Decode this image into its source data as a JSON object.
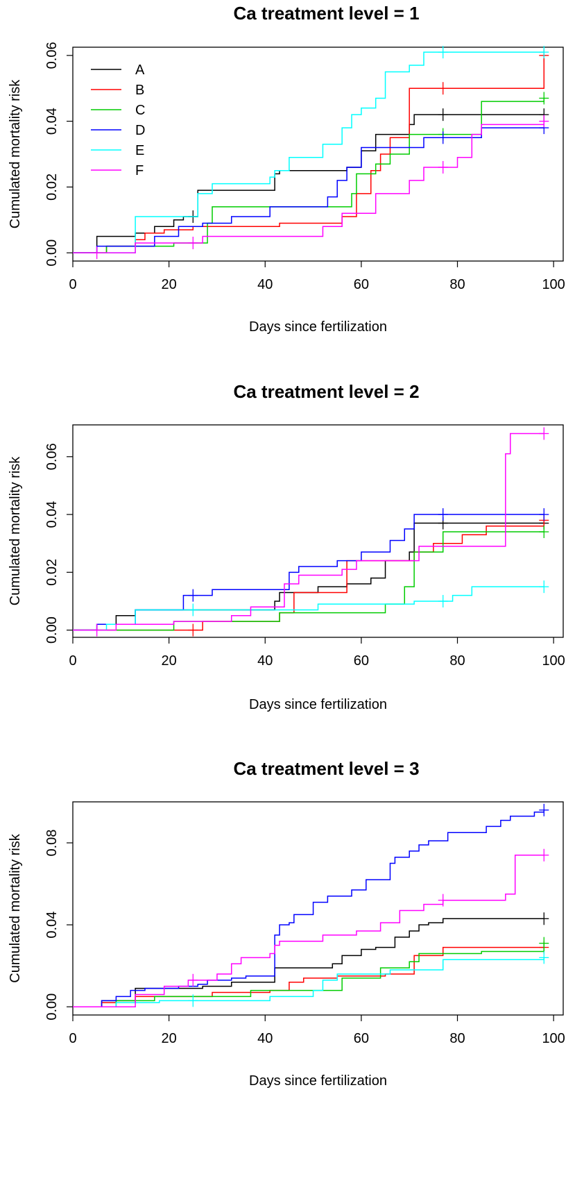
{
  "colors": {
    "A": "#000000",
    "B": "#ff0000",
    "C": "#00cc00",
    "D": "#0000ff",
    "E": "#00ffff",
    "F": "#ff00ff"
  },
  "chart_data": [
    {
      "type": "line",
      "title": "Ca treatment level = 1",
      "xlabel": "Days since fertilization",
      "ylabel": "Cumulated mortality risk",
      "xlim": [
        0,
        102
      ],
      "ylim": [
        -0.0025,
        0.0625
      ],
      "xticks": [
        "0",
        "20",
        "40",
        "60",
        "80",
        "100"
      ],
      "xtick_values": [
        0,
        20,
        40,
        60,
        80,
        100
      ],
      "yticks": [
        "0.00",
        "0.02",
        "0.04",
        "0.06"
      ],
      "ytick_values": [
        0,
        0.02,
        0.04,
        0.06
      ],
      "legend": {
        "position": "top-left",
        "entries": [
          "A",
          "B",
          "C",
          "D",
          "E",
          "F"
        ]
      },
      "series": [
        {
          "name": "A",
          "color": "#000000",
          "x": [
            0,
            5,
            13,
            17,
            21,
            23,
            26,
            42,
            43,
            57,
            60,
            63,
            70,
            71,
            98
          ],
          "y": [
            0,
            0.005,
            0.006,
            0.008,
            0.01,
            0.011,
            0.019,
            0.024,
            0.025,
            0.026,
            0.031,
            0.036,
            0.039,
            0.042,
            0.042
          ],
          "censored_x": [
            25,
            77,
            98
          ]
        },
        {
          "name": "B",
          "color": "#ff0000",
          "x": [
            0,
            7,
            13,
            15,
            19,
            23,
            25,
            30,
            43,
            56,
            59,
            62,
            64,
            66,
            70,
            98
          ],
          "y": [
            0,
            0.002,
            0.004,
            0.006,
            0.007,
            0.007,
            0.008,
            0.008,
            0.009,
            0.011,
            0.018,
            0.025,
            0.03,
            0.035,
            0.05,
            0.06
          ],
          "censored_x": [
            77,
            98
          ]
        },
        {
          "name": "C",
          "color": "#00cc00",
          "x": [
            0,
            7,
            21,
            28,
            29,
            48,
            58,
            59,
            63,
            66,
            70,
            85,
            98
          ],
          "y": [
            0,
            0.002,
            0.003,
            0.009,
            0.014,
            0.014,
            0.018,
            0.024,
            0.027,
            0.03,
            0.036,
            0.046,
            0.047
          ],
          "censored_x": [
            77,
            98
          ]
        },
        {
          "name": "D",
          "color": "#0000ff",
          "x": [
            0,
            5,
            17,
            22,
            27,
            33,
            41,
            45,
            53,
            55,
            57,
            60,
            65,
            73,
            85,
            98
          ],
          "y": [
            0,
            0.002,
            0.005,
            0.008,
            0.009,
            0.011,
            0.014,
            0.014,
            0.017,
            0.022,
            0.026,
            0.032,
            0.032,
            0.035,
            0.038,
            0.038
          ],
          "censored_x": [
            77,
            98
          ]
        },
        {
          "name": "E",
          "color": "#00ffff",
          "x": [
            0,
            13,
            21,
            26,
            29,
            41,
            42,
            45,
            52,
            56,
            58,
            60,
            63,
            65,
            70,
            73,
            98
          ],
          "y": [
            0,
            0.011,
            0.011,
            0.018,
            0.021,
            0.023,
            0.025,
            0.029,
            0.033,
            0.038,
            0.042,
            0.044,
            0.047,
            0.055,
            0.057,
            0.061,
            0.061
          ],
          "censored_x": [
            77,
            98
          ]
        },
        {
          "name": "F",
          "color": "#ff00ff",
          "x": [
            0,
            13,
            27,
            52,
            56,
            63,
            70,
            73,
            80,
            83,
            85,
            98
          ],
          "y": [
            0,
            0.003,
            0.005,
            0.008,
            0.012,
            0.018,
            0.022,
            0.026,
            0.029,
            0.036,
            0.039,
            0.04
          ],
          "censored_x": [
            5,
            25,
            77,
            98
          ]
        }
      ]
    },
    {
      "type": "line",
      "title": "Ca treatment level = 2",
      "xlabel": "Days since fertilization",
      "ylabel": "Cumulated mortality risk",
      "xlim": [
        0,
        102
      ],
      "ylim": [
        -0.0025,
        0.071
      ],
      "xticks": [
        "0",
        "20",
        "40",
        "60",
        "80",
        "100"
      ],
      "xtick_values": [
        0,
        20,
        40,
        60,
        80,
        100
      ],
      "yticks": [
        "0.00",
        "0.02",
        "0.04",
        "0.06"
      ],
      "ytick_values": [
        0,
        0.02,
        0.04,
        0.06
      ],
      "series": [
        {
          "name": "A",
          "color": "#000000",
          "x": [
            0,
            5,
            9,
            13,
            42,
            43,
            51,
            57,
            62,
            65,
            70,
            71,
            98
          ],
          "y": [
            0,
            0.002,
            0.005,
            0.007,
            0.01,
            0.013,
            0.015,
            0.016,
            0.018,
            0.024,
            0.027,
            0.037,
            0.037
          ],
          "censored_x": [
            77,
            98
          ]
        },
        {
          "name": "B",
          "color": "#ff0000",
          "x": [
            0,
            27,
            43,
            46,
            57,
            71,
            75,
            81,
            86,
            98
          ],
          "y": [
            0,
            0.003,
            0.006,
            0.013,
            0.024,
            0.027,
            0.03,
            0.033,
            0.036,
            0.038
          ],
          "censored_x": [
            25,
            98
          ]
        },
        {
          "name": "C",
          "color": "#00cc00",
          "x": [
            0,
            21,
            43,
            65,
            69,
            71,
            77,
            98
          ],
          "y": [
            0,
            0.003,
            0.006,
            0.009,
            0.015,
            0.027,
            0.034,
            0.034
          ],
          "censored_x": [
            98
          ]
        },
        {
          "name": "D",
          "color": "#0000ff",
          "x": [
            0,
            5,
            13,
            23,
            29,
            45,
            47,
            55,
            60,
            66,
            69,
            70,
            71,
            98
          ],
          "y": [
            0,
            0.002,
            0.007,
            0.012,
            0.014,
            0.02,
            0.022,
            0.024,
            0.027,
            0.031,
            0.035,
            0.035,
            0.04,
            0.04
          ],
          "censored_x": [
            25,
            77,
            98
          ]
        },
        {
          "name": "E",
          "color": "#00ffff",
          "x": [
            0,
            7,
            13,
            51,
            71,
            79,
            83,
            98
          ],
          "y": [
            0,
            0.002,
            0.007,
            0.009,
            0.01,
            0.012,
            0.015,
            0.015
          ],
          "censored_x": [
            25,
            77,
            98
          ]
        },
        {
          "name": "F",
          "color": "#ff00ff",
          "x": [
            0,
            9,
            21,
            33,
            37,
            44,
            47,
            52,
            56,
            59,
            65,
            72,
            90,
            91,
            98
          ],
          "y": [
            0,
            0.002,
            0.003,
            0.005,
            0.008,
            0.016,
            0.019,
            0.019,
            0.021,
            0.024,
            0.024,
            0.029,
            0.061,
            0.068,
            0.068
          ],
          "censored_x": [
            5,
            98
          ]
        }
      ]
    },
    {
      "type": "line",
      "title": "Ca treatment level = 3",
      "xlabel": "Days since fertilization",
      "ylabel": "Cumulated mortality risk",
      "xlim": [
        0,
        102
      ],
      "ylim": [
        -0.004,
        0.1
      ],
      "xticks": [
        "0",
        "20",
        "40",
        "60",
        "80",
        "100"
      ],
      "xtick_values": [
        0,
        20,
        40,
        60,
        80,
        100
      ],
      "yticks": [
        "0.00",
        "0.04",
        "0.08"
      ],
      "ytick_values": [
        0,
        0.04,
        0.08
      ],
      "series": [
        {
          "name": "A",
          "color": "#000000",
          "x": [
            0,
            6,
            13,
            27,
            33,
            42,
            54,
            56,
            60,
            63,
            67,
            70,
            72,
            74,
            77,
            98
          ],
          "y": [
            0,
            0.003,
            0.009,
            0.01,
            0.012,
            0.019,
            0.021,
            0.025,
            0.028,
            0.029,
            0.034,
            0.037,
            0.04,
            0.041,
            0.043,
            0.043
          ],
          "censored_x": [
            98
          ]
        },
        {
          "name": "B",
          "color": "#ff0000",
          "x": [
            0,
            6,
            13,
            29,
            41,
            45,
            48,
            55,
            65,
            71,
            77,
            98
          ],
          "y": [
            0,
            0.002,
            0.005,
            0.007,
            0.008,
            0.012,
            0.014,
            0.015,
            0.016,
            0.025,
            0.029,
            0.029
          ],
          "censored_x": [
            98
          ]
        },
        {
          "name": "C",
          "color": "#00cc00",
          "x": [
            0,
            9,
            17,
            37,
            56,
            64,
            70,
            72,
            85,
            98
          ],
          "y": [
            0,
            0.003,
            0.005,
            0.008,
            0.014,
            0.019,
            0.022,
            0.026,
            0.027,
            0.031
          ],
          "censored_x": [
            98
          ]
        },
        {
          "name": "D",
          "color": "#0000ff",
          "x": [
            0,
            6,
            9,
            12,
            15,
            22,
            26,
            28,
            31,
            33,
            36,
            42,
            43,
            45,
            46,
            50,
            53,
            55,
            58,
            61,
            66,
            67,
            70,
            72,
            74,
            78,
            86,
            89,
            91,
            96,
            98
          ],
          "y": [
            0,
            0.003,
            0.005,
            0.008,
            0.009,
            0.01,
            0.011,
            0.013,
            0.013,
            0.014,
            0.015,
            0.035,
            0.04,
            0.041,
            0.045,
            0.051,
            0.054,
            0.054,
            0.057,
            0.062,
            0.07,
            0.073,
            0.076,
            0.079,
            0.081,
            0.085,
            0.088,
            0.091,
            0.093,
            0.095,
            0.096
          ],
          "censored_x": [
            98
          ]
        },
        {
          "name": "E",
          "color": "#00ffff",
          "x": [
            0,
            9,
            18,
            41,
            50,
            52,
            55,
            66,
            77,
            98
          ],
          "y": [
            0,
            0.002,
            0.003,
            0.005,
            0.008,
            0.013,
            0.016,
            0.018,
            0.023,
            0.024
          ],
          "censored_x": [
            25,
            98
          ]
        },
        {
          "name": "F",
          "color": "#ff00ff",
          "x": [
            0,
            13,
            19,
            24,
            30,
            33,
            35,
            41,
            42,
            43,
            45,
            52,
            59,
            64,
            68,
            73,
            77,
            90,
            92,
            98
          ],
          "y": [
            0,
            0.006,
            0.01,
            0.013,
            0.016,
            0.021,
            0.024,
            0.026,
            0.03,
            0.032,
            0.032,
            0.035,
            0.037,
            0.041,
            0.047,
            0.05,
            0.052,
            0.055,
            0.074,
            0.074
          ],
          "censored_x": [
            25,
            77,
            98
          ]
        }
      ]
    }
  ]
}
